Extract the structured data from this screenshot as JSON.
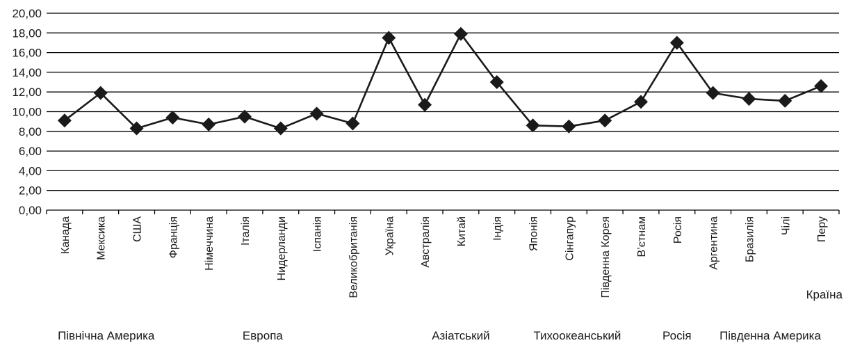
{
  "chart_data": {
    "type": "line",
    "title": "",
    "xlabel": "Країна",
    "ylabel": "",
    "ylim": [
      0,
      20
    ],
    "y_ticks": [
      "0,00",
      "2,00",
      "4,00",
      "6,00",
      "8,00",
      "10,00",
      "12,00",
      "14,00",
      "16,00",
      "18,00",
      "20,00"
    ],
    "grid": true,
    "legend": "none",
    "marker": "diamond",
    "line_color": "#1a1a1a",
    "categories": [
      "Канада",
      "Мексика",
      "США",
      "Франція",
      "Німеччина",
      "Італія",
      "Нидерланди",
      "Іспанія",
      "Великобританія",
      "Україна",
      "Австралія",
      "Китай",
      "Індія",
      "Японія",
      "Сінгапур",
      "Південна Корея",
      "В’єтнам",
      "Росія",
      "Аргентина",
      "Бразилія",
      "Чілі",
      "Перу"
    ],
    "series": [
      {
        "values": [
          9.1,
          11.9,
          8.3,
          9.4,
          8.7,
          9.5,
          8.3,
          9.8,
          8.8,
          17.5,
          10.7,
          17.9,
          13.0,
          8.6,
          8.5,
          9.1,
          11.0,
          17.0,
          11.9,
          11.3,
          11.1,
          12.6
        ]
      }
    ],
    "region_groups": [
      {
        "label": "Північна Америка",
        "first": 0,
        "last": 2
      },
      {
        "label": "Европа",
        "first": 3,
        "last": 8
      },
      {
        "label": "Азіатський",
        "first": 10,
        "last": 12
      },
      {
        "label": "Тихоокеанський",
        "first": 13,
        "last": 15
      },
      {
        "label": "Росія",
        "first": 17,
        "last": 17
      },
      {
        "label": "Південна Америка",
        "first": 18,
        "last": 21
      }
    ]
  }
}
